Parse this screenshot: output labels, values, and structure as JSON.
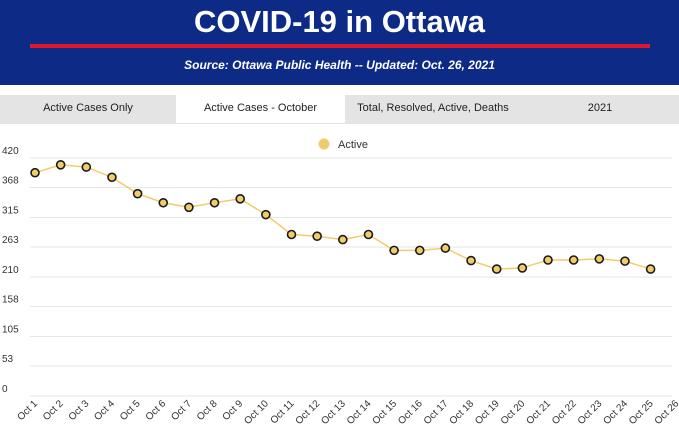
{
  "header": {
    "title": "COVID-19 in Ottawa",
    "subtitle": "Source:  Ottawa Public Health -- Updated:  Oct. 26, 2021"
  },
  "tabs": [
    {
      "label": "Active Cases Only",
      "active": false
    },
    {
      "label": "Active Cases - October",
      "active": true
    },
    {
      "label": "Total, Resolved, Active, Deaths",
      "active": false
    },
    {
      "label": "2021",
      "active": false
    }
  ],
  "colors": {
    "header_bg": "#0d2a86",
    "accent_line": "#e0162b",
    "series": "#f2cc6b",
    "marker_stroke": "#1a1a1a",
    "grid": "#e6e6e6"
  },
  "chart_data": {
    "type": "line",
    "legend": {
      "label": "Active",
      "position": "top-center"
    },
    "x": [
      "Oct 1",
      "Oct 2",
      "Oct 3",
      "Oct 4",
      "Oct 5",
      "Oct 6",
      "Oct 7",
      "Oct 8",
      "Oct 9",
      "Oct 10",
      "Oct 11",
      "Oct 12",
      "Oct 13",
      "Oct 14",
      "Oct 15",
      "Oct 16",
      "Oct 17",
      "Oct 18",
      "Oct 19",
      "Oct 20",
      "Oct 21",
      "Oct 22",
      "Oct 23",
      "Oct 24",
      "Oct 25",
      "Oct 26"
    ],
    "series": [
      {
        "name": "Active",
        "values": [
          394,
          408,
          404,
          386,
          357,
          341,
          333,
          341,
          348,
          320,
          285,
          282,
          276,
          285,
          257,
          257,
          261,
          239,
          224,
          226,
          240,
          240,
          242,
          238,
          224,
          null
        ]
      }
    ],
    "yticks": [
      0,
      53,
      105,
      158,
      210,
      263,
      315,
      368,
      420
    ],
    "ylim": [
      0,
      420
    ],
    "grid": true
  }
}
